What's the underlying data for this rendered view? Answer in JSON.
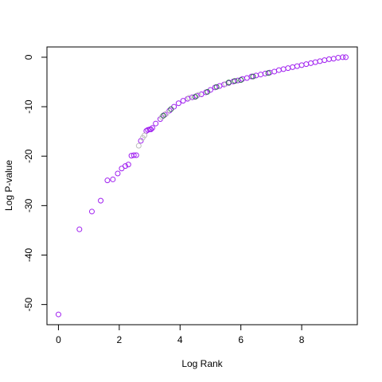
{
  "chart_data": {
    "type": "scatter",
    "x_label": "Log Rank",
    "y_label": "Log P-value",
    "xlim": [
      -0.378,
      9.83
    ],
    "ylim": [
      -54.08,
      2.08
    ],
    "xticks": [
      0,
      2,
      4,
      6,
      8
    ],
    "yticks": [
      0,
      -10,
      -20,
      -30,
      -40,
      -50
    ],
    "series": [
      {
        "name": "purple",
        "color": "#a020f0",
        "x": [
          0,
          0.69,
          1.1,
          1.39,
          1.61,
          1.79,
          1.95,
          2.08,
          2.2,
          2.3,
          2.4,
          2.48,
          2.56,
          2.71,
          2.89,
          2.94,
          3.0,
          3.04,
          3.09,
          3.2,
          3.35,
          3.5,
          3.65,
          3.8,
          3.95,
          4.1,
          4.25,
          4.4,
          4.55,
          4.7,
          4.85,
          5.0,
          5.15,
          5.3,
          5.45,
          5.6,
          5.75,
          5.9,
          6.05,
          6.2,
          6.35,
          6.5,
          6.65,
          6.8,
          6.95,
          7.1,
          7.25,
          7.4,
          7.55,
          7.7,
          7.85,
          8.0,
          8.15,
          8.3,
          8.45,
          8.6,
          8.75,
          8.9,
          9.05,
          9.2,
          9.35,
          9.45
        ],
        "values": [
          -52,
          -34.8,
          -31.2,
          -29,
          -24.9,
          -24.7,
          -23.5,
          -22.5,
          -22,
          -21.7,
          -19.9,
          -19.8,
          -19.8,
          -16.9,
          -14.9,
          -14.7,
          -14.6,
          -14.6,
          -14.3,
          -13.4,
          -12.5,
          -11.6,
          -10.8,
          -10.0,
          -9.3,
          -8.8,
          -8.4,
          -8.1,
          -7.8,
          -7.5,
          -7.1,
          -6.6,
          -6.1,
          -5.8,
          -5.5,
          -5.2,
          -4.9,
          -4.7,
          -4.4,
          -4.2,
          -3.9,
          -3.7,
          -3.5,
          -3.3,
          -3.1,
          -2.9,
          -2.6,
          -2.4,
          -2.2,
          -2.0,
          -1.8,
          -1.6,
          -1.4,
          -1.2,
          -1.0,
          -0.8,
          -0.6,
          -0.4,
          -0.3,
          -0.1,
          0,
          0
        ]
      },
      {
        "name": "gray",
        "color": "#bebebe",
        "x": [
          2.64,
          2.77,
          2.83,
          3.4,
          3.55,
          4.3,
          4.6,
          5.5
        ],
        "values": [
          -17.9,
          -16.3,
          -15.8,
          -12.1,
          -11.4,
          -8.2,
          -7.6,
          -5.4
        ]
      },
      {
        "name": "green",
        "color": "#2f6f4f",
        "x": [
          3.45,
          3.7,
          4.5,
          4.9,
          5.2,
          5.6,
          5.8,
          6.0,
          6.4,
          6.9
        ],
        "values": [
          -11.8,
          -10.5,
          -8.0,
          -7.0,
          -6.0,
          -5.1,
          -4.8,
          -4.6,
          -3.9,
          -3.2
        ]
      }
    ]
  }
}
